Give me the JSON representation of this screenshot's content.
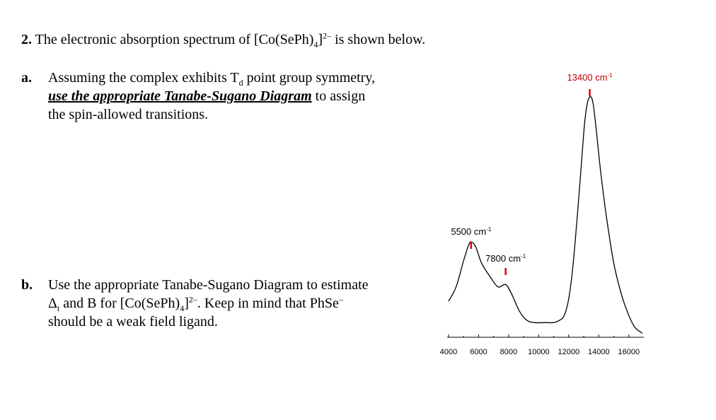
{
  "question": {
    "number": "2.",
    "text_before": " The electronic absorption spectrum of [Co(SePh)",
    "sub": "4",
    "text_after_bracket": "]",
    "sup": "2–",
    "text_end": " is shown below."
  },
  "part_a": {
    "letter": "a.",
    "line1_before": "Assuming the complex exhibits T",
    "line1_sub": "d",
    "line1_after": " point group symmetry,",
    "emph": "use the appropriate Tanabe-Sugano Diagram",
    "line2_after": " to assign",
    "line3": "the spin-allowed transitions."
  },
  "part_b": {
    "letter": "b.",
    "line1": "Use the appropriate Tanabe-Sugano Diagram to estimate",
    "delta": "Δ",
    "delta_sub": "t",
    "text2": " and B for [Co(SePh)",
    "sub": "4",
    "text3": "]",
    "sup": "2–",
    "text4": ". Keep in mind that PhSe",
    "sup2": "–",
    "line3": "should be a weak field ligand."
  },
  "chart_data": {
    "type": "line",
    "title": "",
    "xlabel": "",
    "ylabel": "",
    "xlim": [
      4000,
      17000
    ],
    "x_ticks": [
      4000,
      6000,
      8000,
      10000,
      12000,
      14000,
      16000
    ],
    "x_tick_labels": [
      "4000",
      "6000",
      "8000",
      "10000",
      "12000",
      "14000",
      "16000"
    ],
    "series": [
      {
        "x": [
          4000,
          4500,
          5000,
          5300,
          5500,
          5800,
          6200,
          6800,
          7300,
          7800,
          8200,
          8700,
          9200,
          9700,
          10500,
          11000,
          11400,
          11700,
          12000,
          12300,
          12700,
          13000,
          13200,
          13400,
          13600,
          13800,
          14100,
          14500,
          15000,
          15500,
          16000,
          16400,
          16900
        ],
        "y": [
          0.14,
          0.2,
          0.31,
          0.37,
          0.39,
          0.37,
          0.3,
          0.24,
          0.2,
          0.21,
          0.17,
          0.1,
          0.06,
          0.05,
          0.05,
          0.05,
          0.06,
          0.08,
          0.15,
          0.3,
          0.6,
          0.85,
          0.96,
          1.0,
          0.98,
          0.88,
          0.7,
          0.5,
          0.3,
          0.17,
          0.08,
          0.03,
          0.005
        ]
      }
    ],
    "annotations": [
      {
        "x": 5500,
        "label": "5500 cm",
        "sup": "-1"
      },
      {
        "x": 7800,
        "label": "7800 cm",
        "sup": "-1"
      },
      {
        "x": 13400,
        "label": "13400 cm",
        "sup": "-1"
      }
    ],
    "marker_color": "#e00000",
    "line_color": "#000000",
    "annotation_color_13400": "#c00000"
  }
}
